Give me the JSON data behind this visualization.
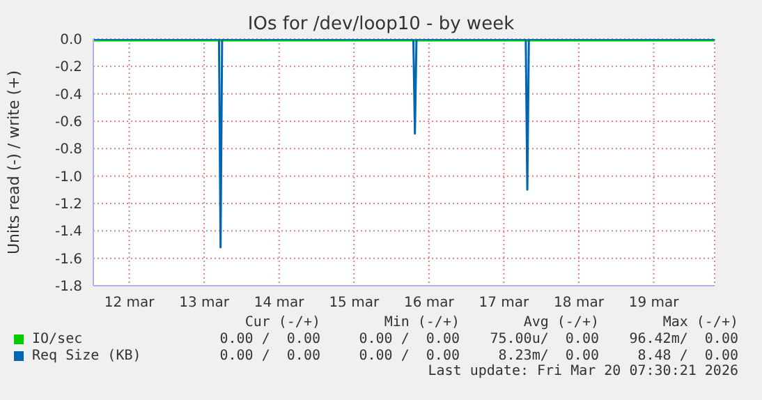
{
  "chart_data": {
    "type": "line",
    "title": "IOs for /dev/loop10 - by week",
    "ylabel": "Units read (-) / write (+)",
    "x": [
      "2026-03-12T00:30",
      "2026-03-13T16:45",
      "2026-03-13T17:15",
      "2026-03-13T17:45",
      "2026-03-16T07:00",
      "2026-03-16T07:30",
      "2026-03-16T08:00",
      "2026-03-17T19:00",
      "2026-03-17T19:30",
      "2026-03-17T20:00",
      "2026-03-20T07:30"
    ],
    "series": [
      {
        "name": "IO/sec",
        "color": "#00cc00",
        "values": [
          0,
          0,
          0,
          0,
          0,
          0,
          0,
          0,
          0,
          0,
          0
        ]
      },
      {
        "name": "Req Size (KB)",
        "color": "#0066b3",
        "values": [
          0,
          0,
          -1.52,
          0,
          0,
          -0.69,
          0,
          0,
          -1.1,
          0,
          0
        ]
      }
    ],
    "xlim": [
      "2026-03-12T00:30",
      "2026-03-20T07:30"
    ],
    "xticks": [
      {
        "value": "2026-03-12T12:00",
        "label": "12 mar"
      },
      {
        "value": "2026-03-13T12:00",
        "label": "13 mar"
      },
      {
        "value": "2026-03-14T12:00",
        "label": "14 mar"
      },
      {
        "value": "2026-03-15T12:00",
        "label": "15 mar"
      },
      {
        "value": "2026-03-16T12:00",
        "label": "16 mar"
      },
      {
        "value": "2026-03-17T12:00",
        "label": "17 mar"
      },
      {
        "value": "2026-03-18T12:00",
        "label": "18 mar"
      },
      {
        "value": "2026-03-19T12:00",
        "label": "19 mar"
      }
    ],
    "ylim": [
      -1.8,
      0.0
    ],
    "yticks": [
      {
        "value": -1.8,
        "label": "-1.8"
      },
      {
        "value": -1.6,
        "label": "-1.6"
      },
      {
        "value": -1.4,
        "label": "-1.4"
      },
      {
        "value": -1.2,
        "label": "-1.2"
      },
      {
        "value": -1.0,
        "label": "-1.0"
      },
      {
        "value": -0.8,
        "label": "-0.8"
      },
      {
        "value": -0.6,
        "label": "-0.6"
      },
      {
        "value": -0.4,
        "label": "-0.4"
      },
      {
        "value": -0.2,
        "label": "-0.2"
      },
      {
        "value": 0.0,
        "label": "0.0"
      }
    ],
    "grid": true,
    "legend": "bottom left",
    "marker": "none",
    "line_style": "solid",
    "annotations": [
      "Cur (-/+)",
      "Min (-/+)",
      "Avg (-/+)",
      "Max (-/+)",
      "0.00 /  0.00",
      "0.00 /  0.00",
      "75.00u/  0.00",
      "96.42m/  0.00",
      "0.00 /  0.00",
      "0.00 /  0.00",
      "8.23m/  0.00",
      "8.48 /  0.00",
      "Last update: Fri Mar 20 07:30:21 2026"
    ]
  }
}
